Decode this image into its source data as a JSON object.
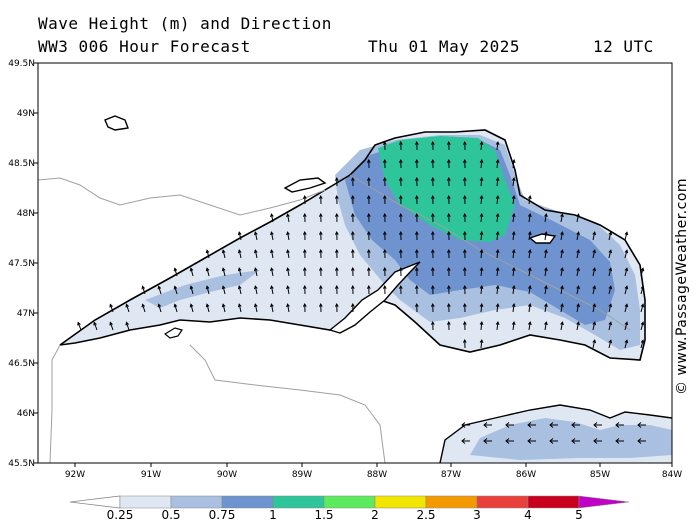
{
  "title": {
    "line1": "Wave Height (m) and Direction",
    "line2": "WW3 006 Hour Forecast",
    "date": "Thu 01 May 2025",
    "time": "12 UTC"
  },
  "credit": "© www.PassageWeather.com",
  "map": {
    "region": "Lake Superior",
    "lat_labels": [
      "49.5N",
      "49N",
      "48.5N",
      "48N",
      "47.5N",
      "47N",
      "46.5N",
      "46N",
      "45.5N"
    ],
    "lon_labels": [
      "92W",
      "91W",
      "90W",
      "89W",
      "88W",
      "87W",
      "86W",
      "85W",
      "84W"
    ],
    "lat_range": [
      45.5,
      49.5
    ],
    "lon_range": [
      -92.5,
      -84
    ]
  },
  "colorbar": {
    "labels": [
      "0.25",
      "0.5",
      "0.75",
      "1",
      "1.5",
      "2",
      "2.5",
      "3",
      "4",
      "5"
    ],
    "colors": [
      "#dfe7f3",
      "#a9c0e0",
      "#6e93cf",
      "#2ec59a",
      "#5eea5e",
      "#f2e600",
      "#f29a00",
      "#e8403a",
      "#c8001e",
      "#c100c8"
    ]
  },
  "colors": {
    "land_line": "#000000",
    "border_line": "#a0a0a0",
    "wave_025": "#dfe7f3",
    "wave_05": "#a9c0e0",
    "wave_075": "#6e93cf",
    "wave_1": "#2ec59a"
  }
}
